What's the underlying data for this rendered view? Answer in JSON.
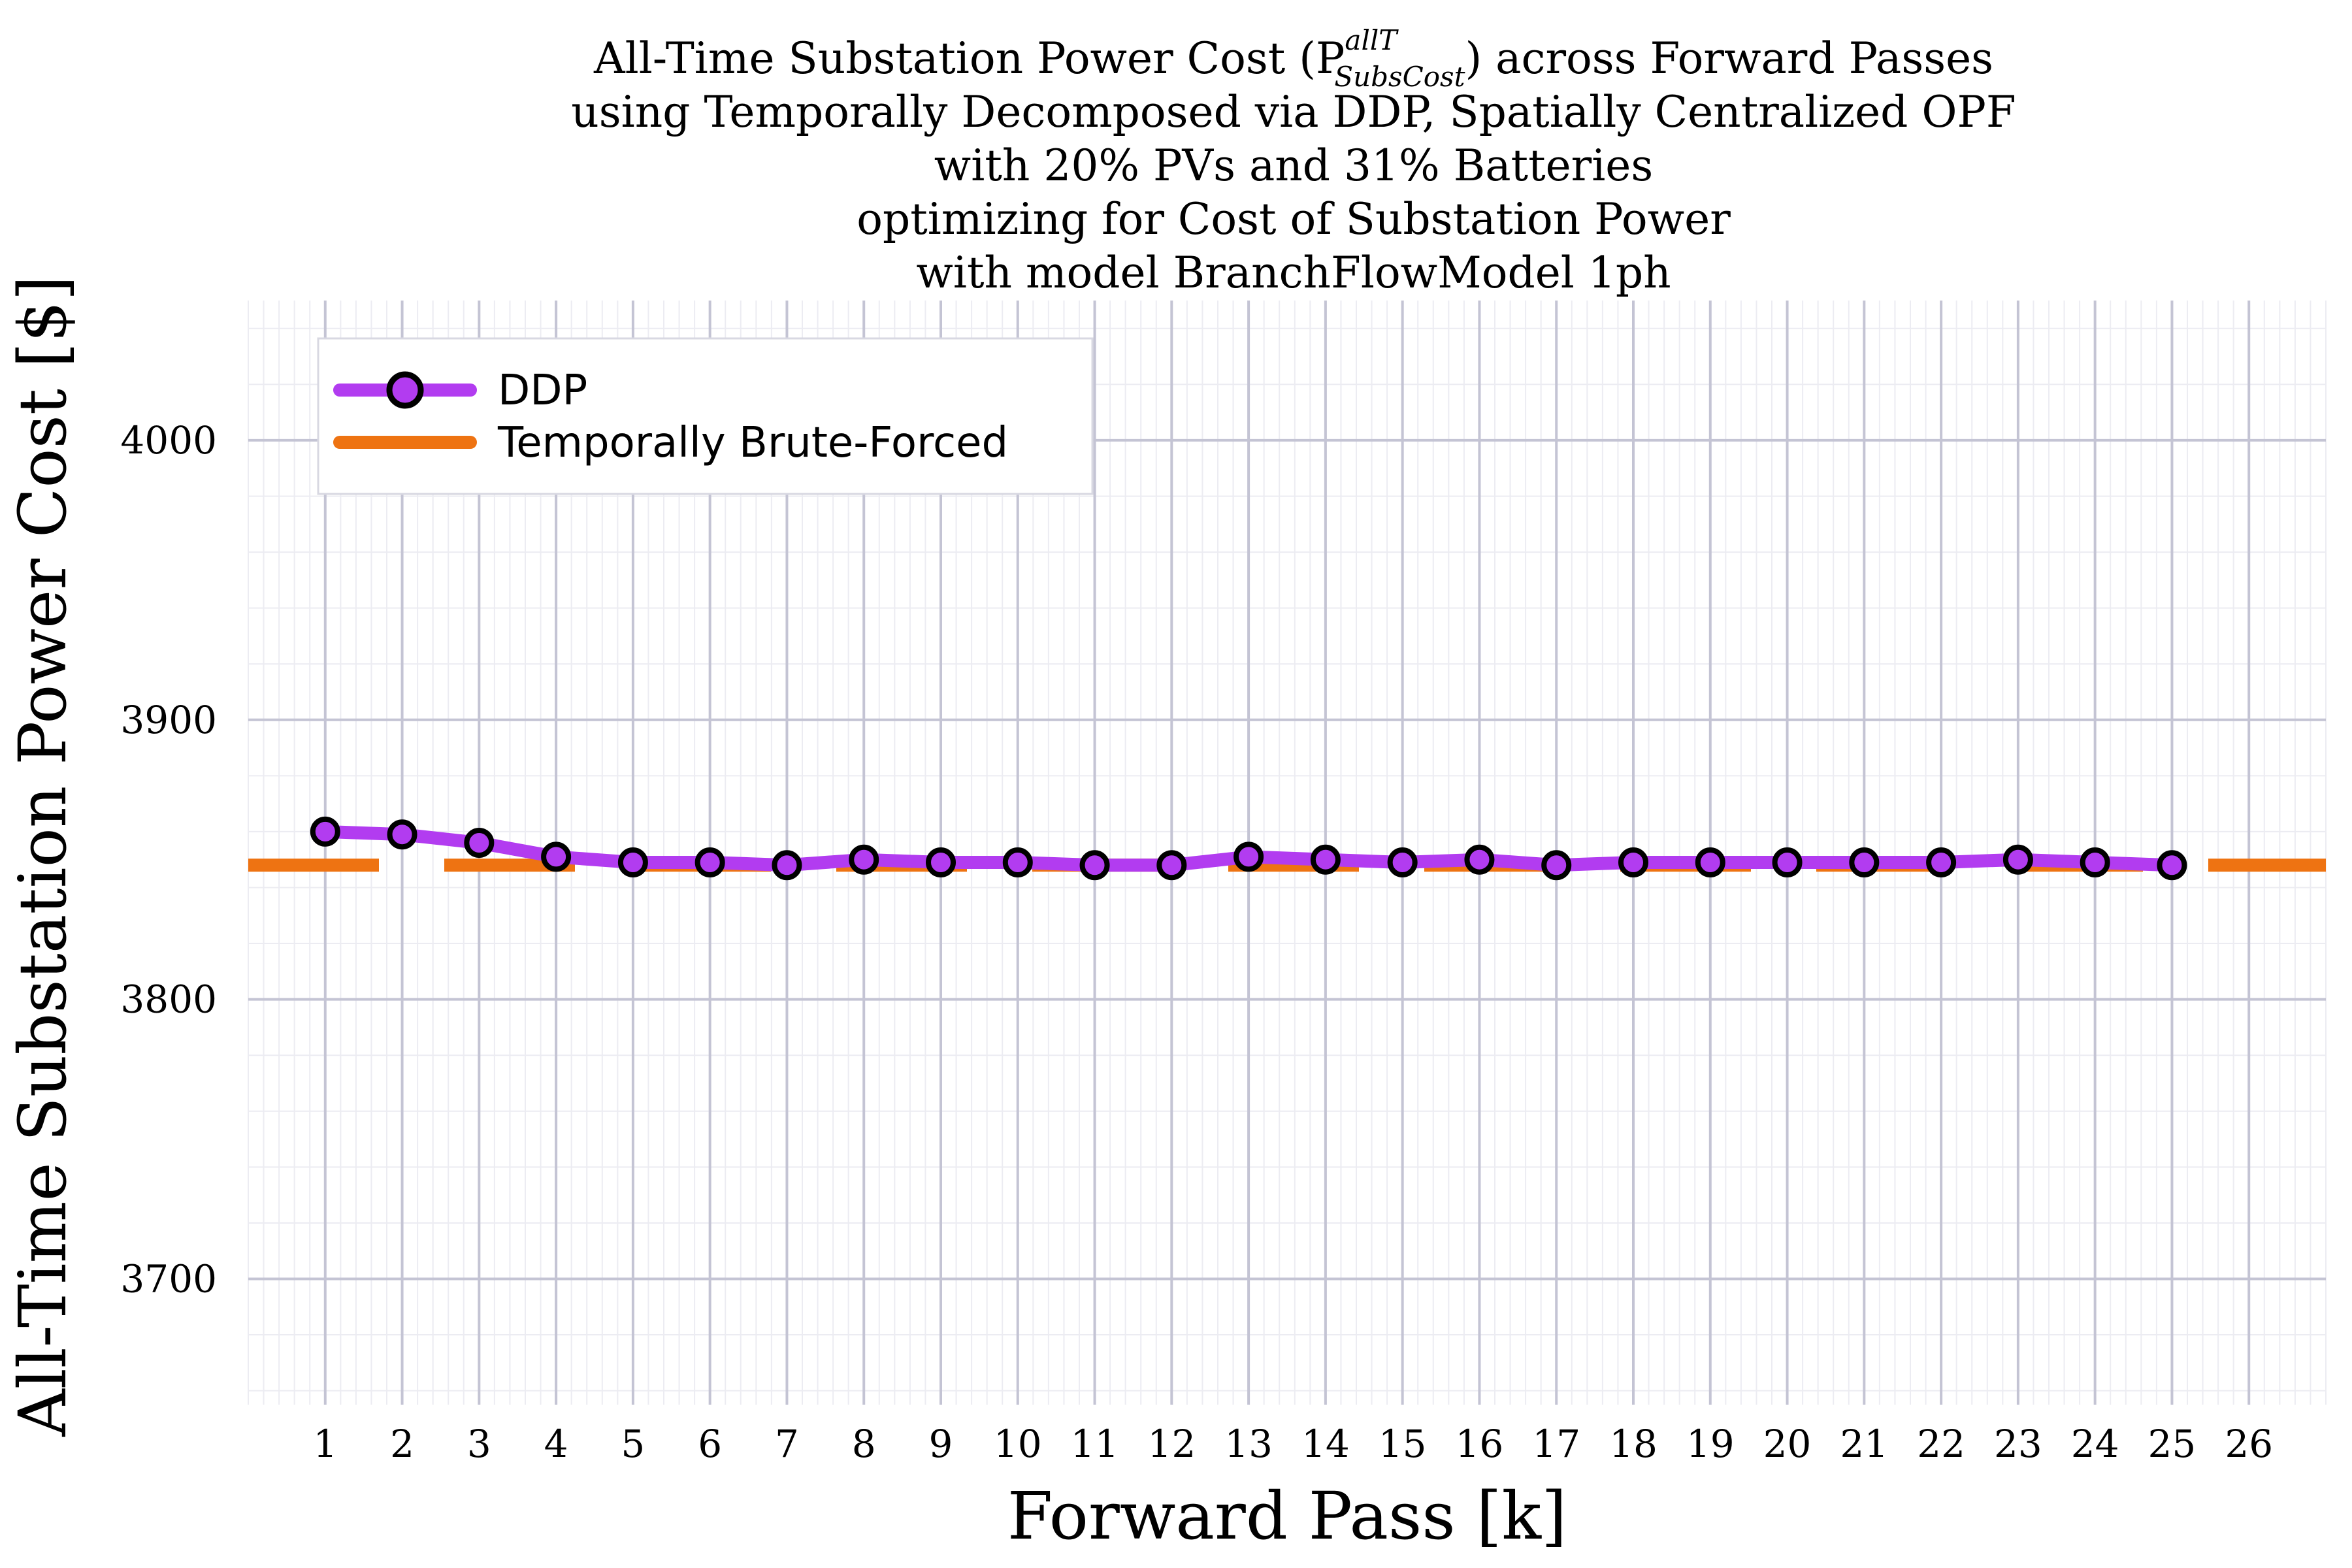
{
  "chart_data": {
    "type": "line",
    "title_lines": [
      "All-Time Substation Power Cost (P",
      "using Temporally Decomposed via DDP, Spatially Centralized OPF",
      "with 20% PVs and 31% Batteries",
      "optimizing for Cost of Substation Power",
      "with model BranchFlowModel 1ph"
    ],
    "title_symbol_sup": "allT",
    "title_symbol_sub": "SubsCost",
    "title_line1_tail": ") across Forward Passes",
    "xlabel": "Forward Pass [k]",
    "ylabel": "All-Time Substation Power Cost [$]",
    "xlim": [
      0.0,
      27.0
    ],
    "ylim": [
      3655,
      4050
    ],
    "x_ticks": [
      1,
      2,
      3,
      4,
      5,
      6,
      7,
      8,
      9,
      10,
      11,
      12,
      13,
      14,
      15,
      16,
      17,
      18,
      19,
      20,
      21,
      22,
      23,
      24,
      25,
      26
    ],
    "y_ticks": [
      3700,
      3800,
      3900,
      4000
    ],
    "grid": true,
    "legend_position": "top-left",
    "series": [
      {
        "name": "DDP",
        "style": "solid-line-with-markers",
        "color": "#b23cf0",
        "marker_edge": "#000000",
        "x": [
          1,
          2,
          3,
          4,
          5,
          6,
          7,
          8,
          9,
          10,
          11,
          12,
          13,
          14,
          15,
          16,
          17,
          18,
          19,
          20,
          21,
          22,
          23,
          24,
          25
        ],
        "values": [
          3860,
          3859,
          3856,
          3851,
          3849,
          3849,
          3848,
          3850,
          3849,
          3849,
          3848,
          3848,
          3851,
          3850,
          3849,
          3850,
          3848,
          3849,
          3849,
          3849,
          3849,
          3849,
          3850,
          3849,
          3848
        ]
      },
      {
        "name": "Temporally Brute-Forced",
        "style": "dashed",
        "color": "#ee7312",
        "value": 3848
      }
    ]
  }
}
